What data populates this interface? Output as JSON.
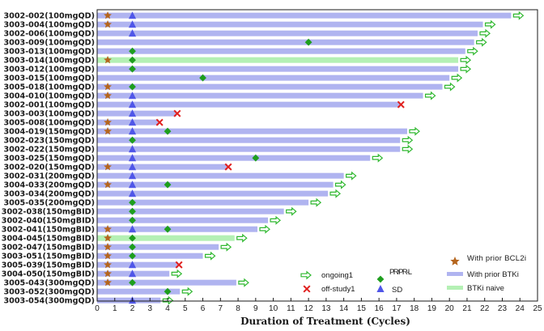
{
  "chart_data": {
    "type": "swimmer",
    "xlabel": "Duration of Treatment (Cycles)",
    "xlim": [
      0,
      25
    ],
    "xticks": [
      0,
      1,
      2,
      3,
      4,
      5,
      6,
      7,
      8,
      9,
      10,
      11,
      12,
      13,
      14,
      15,
      16,
      17,
      18,
      19,
      20,
      21,
      22,
      23,
      24,
      25
    ],
    "grid": false,
    "legend_position": "bottom-right",
    "colors": {
      "with_prior_btki": "#b0b4f0",
      "btki_naive": "#b4f0b4",
      "prior_bcl2i": "#b5651d",
      "sd": "#4f56e8",
      "pr": "#1e9e1e",
      "off_study": "#e0201e",
      "ongoing": "#2fb82f"
    },
    "legend": [
      {
        "symbol": "arrow",
        "label": "ongoing1"
      },
      {
        "symbol": "x",
        "label": "off-study1"
      },
      {
        "symbol": "diamond",
        "label": "PR/PR-L"
      },
      {
        "symbol": "triangle",
        "label": "SD"
      },
      {
        "symbol": "star",
        "label": "With prior BCL2i"
      },
      {
        "symbol": "bar-blue",
        "label": "With prior BTKi"
      },
      {
        "symbol": "bar-green",
        "label": "BTKi naive"
      }
    ],
    "patients": [
      {
        "id": "3002-002(100mgQD)",
        "duration": 23.5,
        "group": "prior_btki",
        "bcl2i": true,
        "sd": 2,
        "pr": null,
        "off": null,
        "ongoing": true
      },
      {
        "id": "3003-004(100mgQD)",
        "duration": 21.9,
        "group": "prior_btki",
        "bcl2i": true,
        "sd": 2,
        "pr": null,
        "off": null,
        "ongoing": true
      },
      {
        "id": "3002-006(100mgQD)",
        "duration": 21.6,
        "group": "prior_btki",
        "bcl2i": false,
        "sd": 2,
        "pr": null,
        "off": null,
        "ongoing": true
      },
      {
        "id": "3003-009(100mgQD)",
        "duration": 21.4,
        "group": "prior_btki",
        "bcl2i": false,
        "sd": null,
        "pr": 12,
        "off": null,
        "ongoing": true
      },
      {
        "id": "3003-013(100mgQD)",
        "duration": 20.9,
        "group": "prior_btki",
        "bcl2i": false,
        "sd": null,
        "pr": 2,
        "off": null,
        "ongoing": true
      },
      {
        "id": "3003-014(100mgQD)",
        "duration": 20.5,
        "group": "btki_naive",
        "bcl2i": true,
        "sd": null,
        "pr": 2,
        "off": null,
        "ongoing": true
      },
      {
        "id": "3003-012(100mgQD)",
        "duration": 20.5,
        "group": "prior_btki",
        "bcl2i": false,
        "sd": null,
        "pr": 2,
        "off": null,
        "ongoing": true
      },
      {
        "id": "3003-015(100mgQD)",
        "duration": 20.0,
        "group": "prior_btki",
        "bcl2i": false,
        "sd": null,
        "pr": 6,
        "off": null,
        "ongoing": true
      },
      {
        "id": "3005-018(100mgQD)",
        "duration": 19.6,
        "group": "prior_btki",
        "bcl2i": true,
        "sd": null,
        "pr": 2,
        "off": null,
        "ongoing": true
      },
      {
        "id": "3004-010(100mgQD)",
        "duration": 18.5,
        "group": "prior_btki",
        "bcl2i": true,
        "sd": 2,
        "pr": null,
        "off": null,
        "ongoing": true
      },
      {
        "id": "3002-001(100mgQD)",
        "duration": 17.2,
        "group": "prior_btki",
        "bcl2i": false,
        "sd": 2,
        "pr": null,
        "off": 17.2,
        "ongoing": false
      },
      {
        "id": "3003-003(100mgQD)",
        "duration": 4.5,
        "group": "prior_btki",
        "bcl2i": false,
        "sd": 2,
        "pr": null,
        "off": 4.5,
        "ongoing": false
      },
      {
        "id": "3005-008(100mgQD)",
        "duration": 3.5,
        "group": "prior_btki",
        "bcl2i": true,
        "sd": 2,
        "pr": null,
        "off": 3.5,
        "ongoing": false
      },
      {
        "id": "3004-019(150mgQD)",
        "duration": 17.6,
        "group": "prior_btki",
        "bcl2i": true,
        "sd": 2,
        "pr": 4,
        "off": null,
        "ongoing": true
      },
      {
        "id": "3002-023(150mgQD)",
        "duration": 17.2,
        "group": "prior_btki",
        "bcl2i": false,
        "sd": null,
        "pr": 2,
        "off": null,
        "ongoing": true
      },
      {
        "id": "3002-022(150mgQD)",
        "duration": 17.2,
        "group": "prior_btki",
        "bcl2i": false,
        "sd": 2,
        "pr": null,
        "off": null,
        "ongoing": true
      },
      {
        "id": "3003-025(150mgQD)",
        "duration": 15.5,
        "group": "prior_btki",
        "bcl2i": false,
        "sd": 2,
        "pr": 9,
        "off": null,
        "ongoing": true
      },
      {
        "id": "3002-020(150mgQD)",
        "duration": 7.4,
        "group": "prior_btki",
        "bcl2i": true,
        "sd": 2,
        "pr": null,
        "off": 7.4,
        "ongoing": false
      },
      {
        "id": "3002-031(200mgQD)",
        "duration": 14.0,
        "group": "prior_btki",
        "bcl2i": false,
        "sd": 2,
        "pr": null,
        "off": null,
        "ongoing": true
      },
      {
        "id": "3004-033(200mgQD)",
        "duration": 13.4,
        "group": "prior_btki",
        "bcl2i": true,
        "sd": 2,
        "pr": 4,
        "off": null,
        "ongoing": true
      },
      {
        "id": "3003-034(200mgQD)",
        "duration": 13.1,
        "group": "prior_btki",
        "bcl2i": false,
        "sd": 2,
        "pr": null,
        "off": null,
        "ongoing": true
      },
      {
        "id": "3005-035(200mgQD)",
        "duration": 12.0,
        "group": "prior_btki",
        "bcl2i": false,
        "sd": null,
        "pr": 2,
        "off": null,
        "ongoing": true
      },
      {
        "id": "3002-038(150mgBID)",
        "duration": 10.6,
        "group": "prior_btki",
        "bcl2i": false,
        "sd": null,
        "pr": 2,
        "off": null,
        "ongoing": true
      },
      {
        "id": "3002-040(150mgBID)",
        "duration": 9.7,
        "group": "prior_btki",
        "bcl2i": false,
        "sd": null,
        "pr": 2,
        "off": null,
        "ongoing": true
      },
      {
        "id": "3002-041(150mgBID)",
        "duration": 9.1,
        "group": "prior_btki",
        "bcl2i": true,
        "sd": 2,
        "pr": 4,
        "off": null,
        "ongoing": true
      },
      {
        "id": "3004-045(150mgBID)",
        "duration": 7.8,
        "group": "btki_naive",
        "bcl2i": true,
        "sd": null,
        "pr": 2,
        "off": null,
        "ongoing": true
      },
      {
        "id": "3002-047(150mgBID)",
        "duration": 6.9,
        "group": "prior_btki",
        "bcl2i": true,
        "sd": null,
        "pr": 2,
        "off": null,
        "ongoing": true
      },
      {
        "id": "3003-051(150mgBID)",
        "duration": 6.0,
        "group": "prior_btki",
        "bcl2i": true,
        "sd": null,
        "pr": 2,
        "off": null,
        "ongoing": true
      },
      {
        "id": "3005-039(150mgBID)",
        "duration": 4.6,
        "group": "prior_btki",
        "bcl2i": true,
        "sd": 2,
        "pr": null,
        "off": 4.6,
        "ongoing": false
      },
      {
        "id": "3004-050(150mgBID)",
        "duration": 4.1,
        "group": "prior_btki",
        "bcl2i": true,
        "sd": 2,
        "pr": null,
        "off": null,
        "ongoing": true
      },
      {
        "id": "3005-043(300mgQD)",
        "duration": 7.9,
        "group": "prior_btki",
        "bcl2i": true,
        "sd": null,
        "pr": 2,
        "off": null,
        "ongoing": true
      },
      {
        "id": "3003-052(300mgQD)",
        "duration": 4.7,
        "group": "prior_btki",
        "bcl2i": false,
        "sd": null,
        "pr": 4,
        "off": null,
        "ongoing": true
      },
      {
        "id": "3003-054(300mgQD)",
        "duration": 3.6,
        "group": "prior_btki",
        "bcl2i": false,
        "sd": 2,
        "pr": null,
        "off": null,
        "ongoing": true
      }
    ]
  }
}
